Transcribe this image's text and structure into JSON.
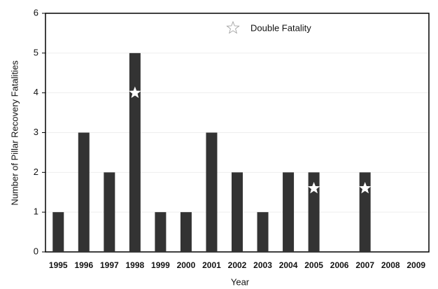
{
  "chart_data": {
    "type": "bar",
    "x_label": "Year",
    "y_label": "Number of Pillar Recovery Fatalities",
    "categories": [
      "1995",
      "1996",
      "1997",
      "1998",
      "1999",
      "2000",
      "2001",
      "2002",
      "2003",
      "2004",
      "2005",
      "2006",
      "2007",
      "2008",
      "2009"
    ],
    "values": [
      1,
      3,
      2,
      5,
      1,
      1,
      3,
      2,
      1,
      2,
      2,
      0,
      2,
      0,
      0
    ],
    "color": "#333333",
    "ylim": [
      0,
      6
    ],
    "yticks": [
      0,
      1,
      2,
      3,
      4,
      5,
      6
    ],
    "grid": true,
    "double_fatality": {
      "name": "Double Fatality",
      "categories": [
        "1998",
        "2005",
        "2007"
      ]
    }
  }
}
